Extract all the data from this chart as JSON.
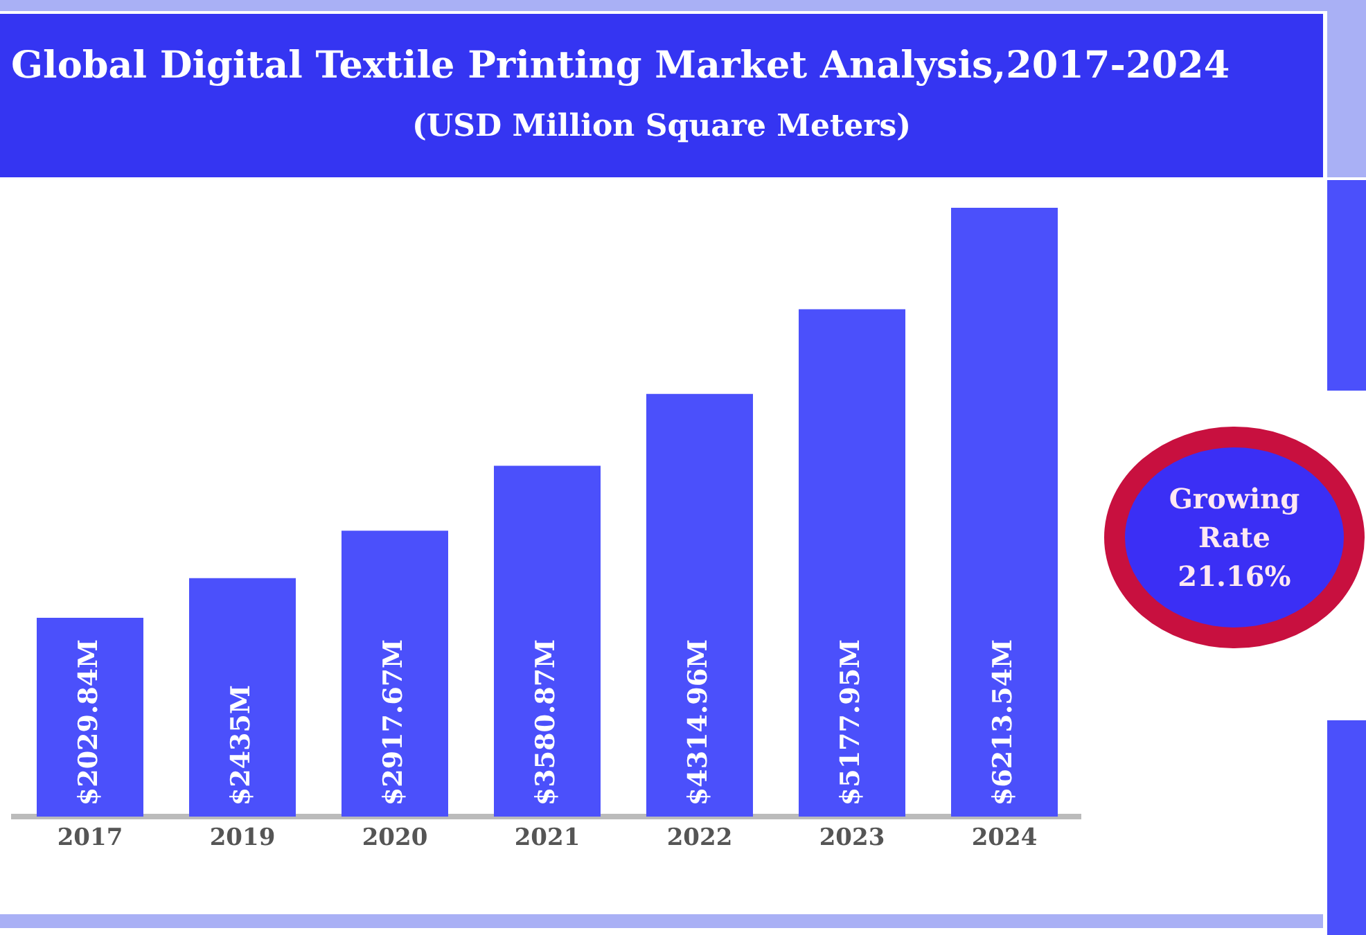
{
  "chart_data": {
    "type": "bar",
    "title": "Global Digital Textile Printing Market Analysis,2017-2024",
    "subtitle": "(USD Million Square Meters)",
    "categories": [
      "2017",
      "2019",
      "2020",
      "2021",
      "2022",
      "2023",
      "2024"
    ],
    "values": [
      2029.84,
      2435,
      2917.67,
      3580.87,
      4314.96,
      5177.95,
      6213.54
    ],
    "value_labels": [
      "$2029.84M",
      "$2435M",
      "$2917.67M",
      "$3580.87M",
      "$4314.96M",
      "$5177.95M",
      "$6213.54M"
    ],
    "color": "#4b50fb",
    "annotations": [
      "Growing Rate 21.16%"
    ]
  }
}
